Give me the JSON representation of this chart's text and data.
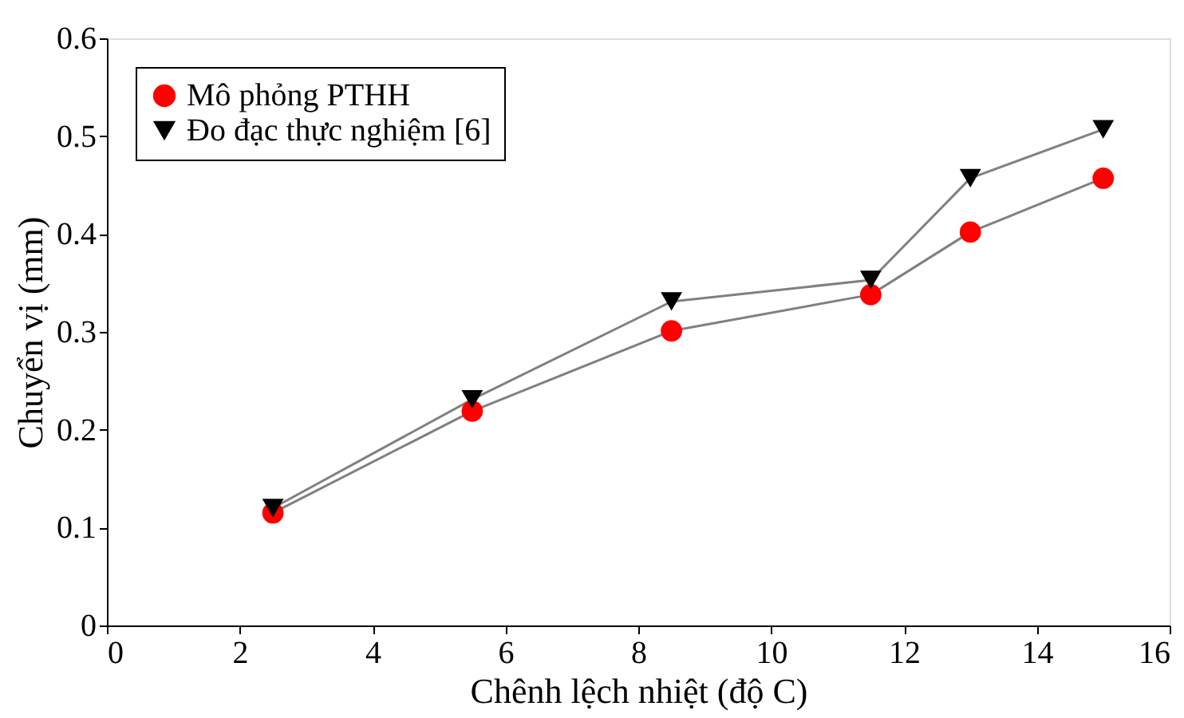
{
  "chart_data": {
    "type": "line",
    "xlabel": "Chênh lệch nhiệt  (độ C)",
    "ylabel": "Chuyển vị  (mm)",
    "x": [
      2.5,
      5.5,
      8.5,
      11.5,
      13,
      15
    ],
    "series": [
      {
        "name": "Mô phỏng PTHH",
        "color": "#ff0000",
        "marker": "circle",
        "values": [
          0.115,
          0.219,
          0.301,
          0.338,
          0.402,
          0.457
        ]
      },
      {
        "name": "Đo đạc thực nghiệm [6]",
        "color": "#000000",
        "marker": "triangle",
        "values": [
          0.12,
          0.231,
          0.331,
          0.353,
          0.457,
          0.507
        ]
      }
    ],
    "xlim": [
      0,
      16
    ],
    "xticks": [
      0,
      2,
      4,
      6,
      8,
      10,
      12,
      14,
      16
    ],
    "ylim": [
      0,
      0.6
    ],
    "yticks": [
      0,
      0.1,
      0.2,
      0.3,
      0.4,
      0.5,
      0.6
    ],
    "legend": "top left",
    "grid": false,
    "line_style": "solid"
  }
}
